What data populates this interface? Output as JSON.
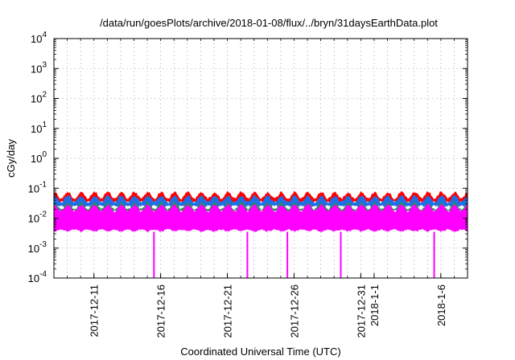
{
  "chart_data": {
    "type": "line",
    "title": "/data/run/goesPlots/archive/2018-01-08/flux/../bryn/31daysEarthData.plot",
    "xlabel": "Coordinated Universal Time (UTC)",
    "ylabel": "cGy/day",
    "yscale": "log",
    "ylim": [
      0.0001,
      10000
    ],
    "y_ticks": [
      {
        "value": 0.0001,
        "base": "10",
        "exp": "-4"
      },
      {
        "value": 0.001,
        "base": "10",
        "exp": "-3"
      },
      {
        "value": 0.01,
        "base": "10",
        "exp": "-2"
      },
      {
        "value": 0.1,
        "base": "10",
        "exp": "-1"
      },
      {
        "value": 1,
        "base": "10",
        "exp": "0"
      },
      {
        "value": 10,
        "base": "10",
        "exp": "1"
      },
      {
        "value": 100,
        "base": "10",
        "exp": "2"
      },
      {
        "value": 1000,
        "base": "10",
        "exp": "3"
      },
      {
        "value": 10000,
        "base": "10",
        "exp": "4"
      }
    ],
    "xlim": [
      "2017-12-08",
      "2018-01-08"
    ],
    "x_ticks": [
      {
        "date": "2017-12-11",
        "label": "2017-12-11"
      },
      {
        "date": "2017-12-16",
        "label": "2017-12-16"
      },
      {
        "date": "2017-12-21",
        "label": "2017-12-21"
      },
      {
        "date": "2017-12-26",
        "label": "2017-12-26"
      },
      {
        "date": "2017-12-31",
        "label": "2017-12-31"
      },
      {
        "date": "2018-01-01",
        "label": "2018-1-1"
      },
      {
        "date": "2018-01-06",
        "label": "2018-1-6"
      }
    ],
    "grid": true,
    "legend": "none",
    "series": [
      {
        "color": "#ff0000",
        "low": 0.03,
        "high": 0.08
      },
      {
        "color": "#1e6fe6",
        "low": 0.022,
        "high": 0.06
      },
      {
        "color": "#2e8b57",
        "low": 0.015,
        "high": 0.035
      },
      {
        "color": "#ff00ff",
        "low": 0.0035,
        "high": 0.03,
        "dropouts": [
          "2017-12-15",
          "2017-12-22",
          "2017-12-25",
          "2017-12-29",
          "2018-01-05"
        ]
      }
    ]
  }
}
